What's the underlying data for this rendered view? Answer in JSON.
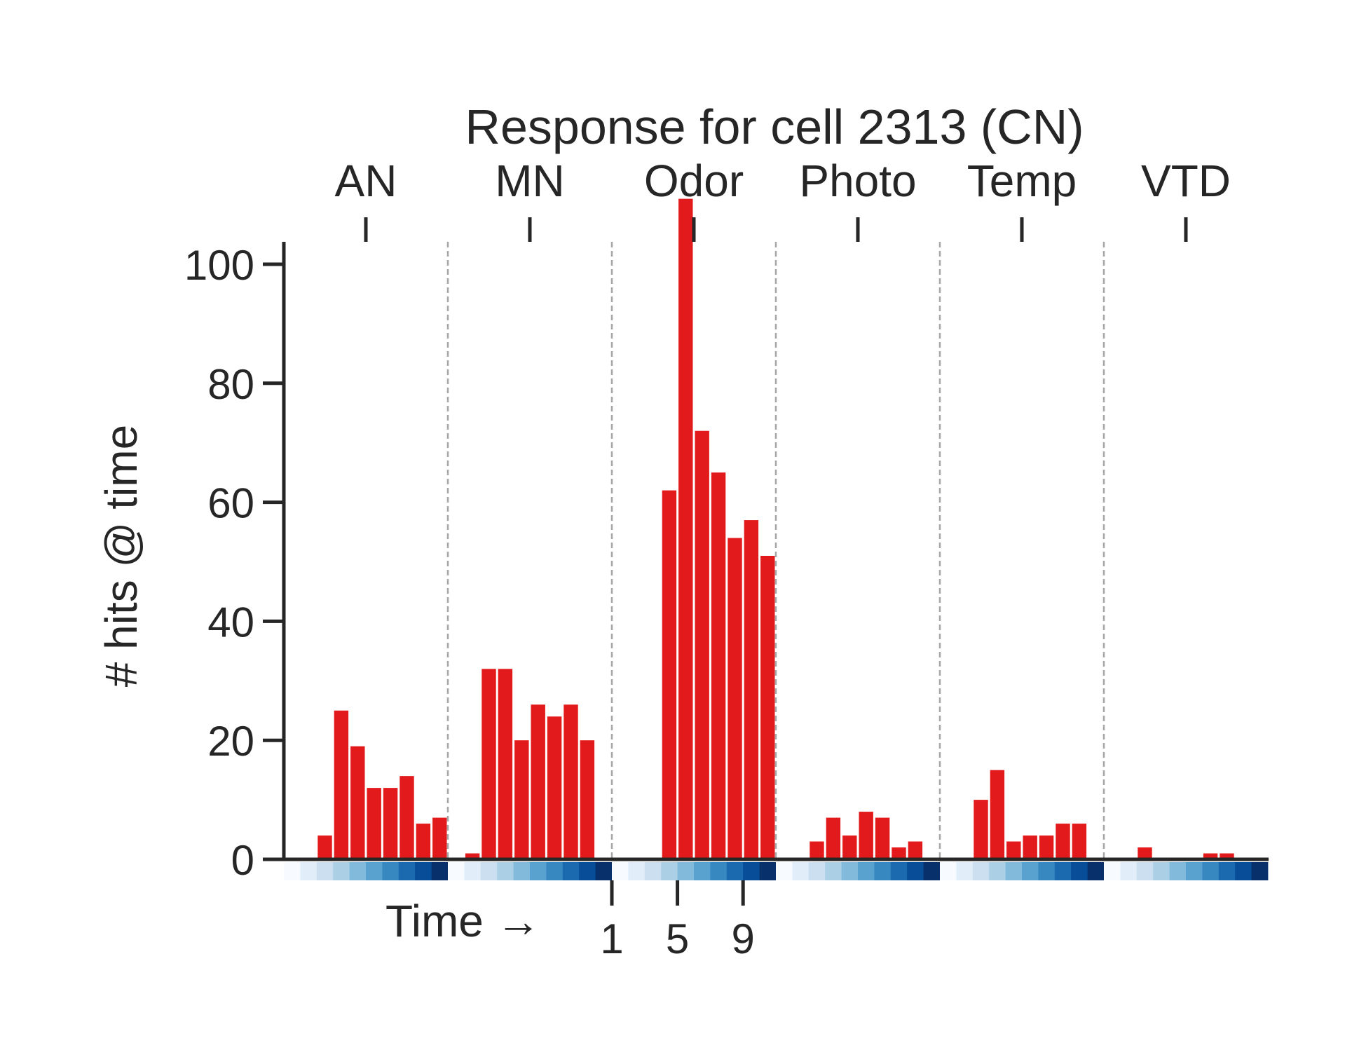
{
  "chart_data": {
    "type": "bar",
    "title": "Response for cell 2313 (CN)",
    "ylabel": "# hits @ time",
    "xlabel": "Time →",
    "ylim": [
      0,
      117
    ],
    "yticks": [
      0,
      20,
      40,
      60,
      80,
      100
    ],
    "time_ticks": [
      1,
      5,
      9
    ],
    "time_ticks_group": "Odor",
    "bins_per_group": 10,
    "bar_color": "#e31a1c",
    "time_colormap": "Blues",
    "groups": [
      {
        "name": "AN",
        "values": [
          0,
          0,
          4,
          25,
          19,
          12,
          12,
          14,
          6,
          7
        ]
      },
      {
        "name": "MN",
        "values": [
          0,
          1,
          32,
          32,
          20,
          26,
          24,
          26,
          20,
          0
        ]
      },
      {
        "name": "Odor",
        "values": [
          0,
          0,
          0,
          62,
          111,
          72,
          65,
          54,
          57,
          51
        ]
      },
      {
        "name": "Photo",
        "values": [
          0,
          0,
          3,
          7,
          4,
          8,
          7,
          2,
          3,
          0
        ]
      },
      {
        "name": "Temp",
        "values": [
          0,
          0,
          10,
          15,
          3,
          4,
          4,
          6,
          6,
          0
        ]
      },
      {
        "name": "VTD",
        "values": [
          0,
          0,
          2,
          0,
          0,
          0,
          1,
          1,
          0,
          0
        ]
      }
    ]
  }
}
